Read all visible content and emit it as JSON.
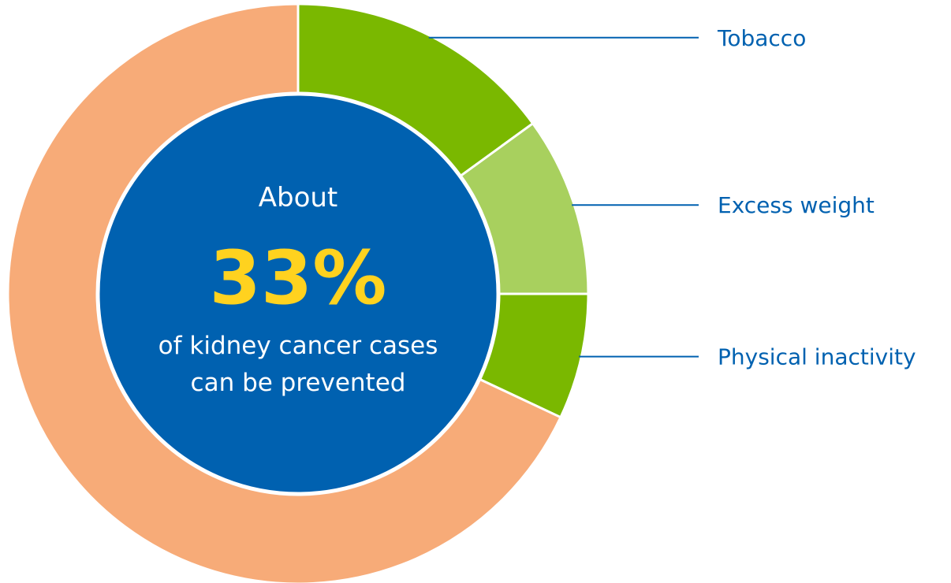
{
  "chart_data": {
    "type": "pie",
    "variant": "donut",
    "slices": [
      {
        "label": "Tobacco",
        "value": 15,
        "color": "#7ab800"
      },
      {
        "label": "Excess weight",
        "value": 10,
        "color": "#a8d05e"
      },
      {
        "label": "Physical inactivity",
        "value": 7,
        "color": "#7ab800"
      },
      {
        "label": "",
        "value": 68,
        "color": "#f7ab78"
      }
    ],
    "center": {
      "line1": "About",
      "highlight": "33%",
      "line2": "of kidney cancer cases",
      "line3": "can be prevented"
    },
    "colors": {
      "center_fill": "#0061b0",
      "center_text": "#ffffff",
      "highlight": "#ffd21f",
      "callout": "#0061b0",
      "separator": "#ffffff"
    }
  }
}
